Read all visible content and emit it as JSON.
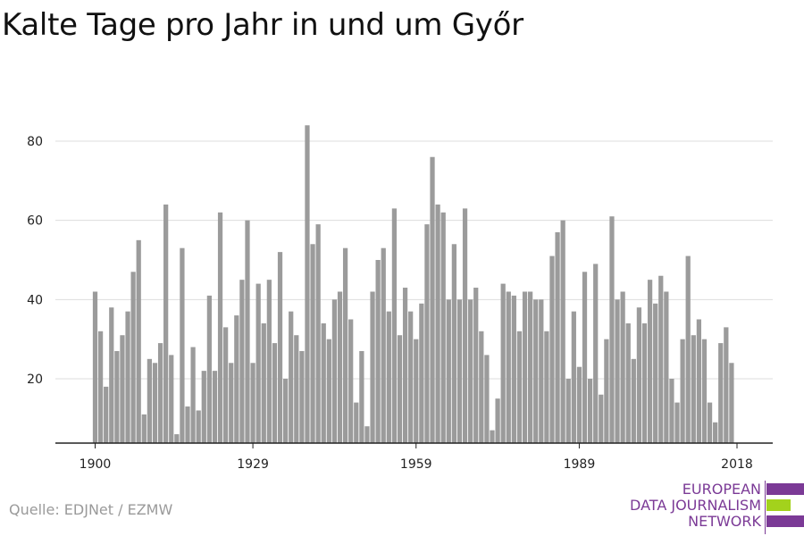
{
  "title": "Kalte Tage pro Jahr in und um Győr",
  "source": "Quelle: EDJNet / EZMW",
  "logo": {
    "lines": [
      "EUROPEAN",
      "DATA JOURNALISM",
      "NETWORK"
    ],
    "colors": {
      "purple": "#7b3a96",
      "green": "#a3d21c"
    }
  },
  "colors": {
    "bar": "#9b9b9b",
    "grid": "#dddddd",
    "axis": "#222222"
  },
  "chart_data": {
    "type": "bar",
    "title": "Kalte Tage pro Jahr in und um Győr",
    "xlabel": "",
    "ylabel": "",
    "x_start": 1900,
    "x_end": 2018,
    "xticks": [
      1900,
      1929,
      1959,
      1989,
      2018
    ],
    "yticks": [
      20,
      40,
      60,
      80
    ],
    "ylim": [
      4,
      88
    ],
    "grid": true,
    "values": [
      42,
      32,
      18,
      38,
      27,
      31,
      37,
      47,
      55,
      11,
      25,
      24,
      29,
      64,
      26,
      6,
      53,
      13,
      28,
      12,
      22,
      41,
      22,
      62,
      33,
      24,
      36,
      45,
      60,
      24,
      44,
      34,
      45,
      29,
      52,
      20,
      37,
      31,
      27,
      84,
      54,
      59,
      34,
      30,
      40,
      42,
      53,
      35,
      14,
      27,
      8,
      42,
      50,
      53,
      37,
      63,
      31,
      43,
      37,
      30,
      39,
      59,
      76,
      64,
      62,
      40,
      54,
      40,
      63,
      40,
      43,
      32,
      26,
      7,
      15,
      44,
      42,
      41,
      32,
      42,
      42,
      40,
      40,
      32,
      51,
      57,
      60,
      20,
      37,
      23,
      47,
      20,
      49,
      16,
      30,
      61,
      40,
      42,
      34,
      25,
      38,
      34,
      45,
      39,
      46,
      42,
      20,
      14,
      30,
      51,
      31,
      35,
      30,
      14,
      9,
      29,
      33,
      24
    ]
  }
}
